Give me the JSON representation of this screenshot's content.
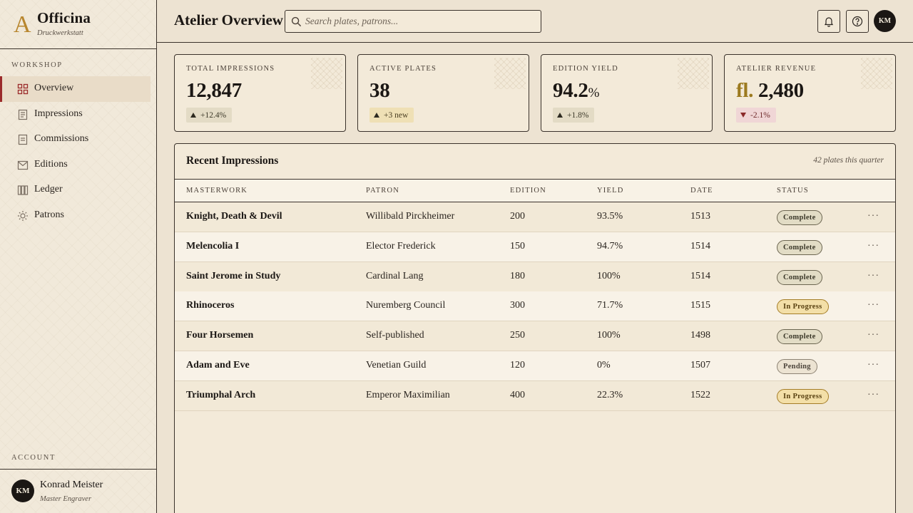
{
  "brand": {
    "name": "Officina",
    "subtitle": "Druckwerkstatt",
    "mark": "A"
  },
  "sidebar": {
    "section_label": "WORKSHOP",
    "items": [
      {
        "label": "Overview",
        "icon": "grid-icon",
        "active": true
      },
      {
        "label": "Impressions",
        "icon": "document-icon",
        "active": false
      },
      {
        "label": "Commissions",
        "icon": "file-icon",
        "active": false
      },
      {
        "label": "Editions",
        "icon": "mail-icon",
        "active": false
      },
      {
        "label": "Ledger",
        "icon": "columns-icon",
        "active": false
      },
      {
        "label": "Patrons",
        "icon": "sun-icon",
        "active": false
      }
    ],
    "account_label": "ACCOUNT",
    "user": {
      "initials": "KM",
      "name": "Konrad Meister",
      "role": "Master Engraver"
    }
  },
  "header": {
    "title": "Atelier Overview",
    "search_placeholder": "Search plates, patrons...",
    "avatar_initials": "KM"
  },
  "stats": [
    {
      "label": "TOTAL IMPRESSIONS",
      "value": "12,847",
      "prefix": "",
      "unit": "",
      "delta": "+12.4%",
      "trend": "up"
    },
    {
      "label": "ACTIVE PLATES",
      "value": "38",
      "prefix": "",
      "unit": "",
      "delta": "+3 new",
      "trend": "new"
    },
    {
      "label": "EDITION YIELD",
      "value": "94.2",
      "prefix": "",
      "unit": "%",
      "delta": "+1.8%",
      "trend": "up"
    },
    {
      "label": "ATELIER REVENUE",
      "value": "2,480",
      "prefix": "fl.",
      "unit": "",
      "delta": "-2.1%",
      "trend": "down"
    }
  ],
  "table": {
    "title": "Recent Impressions",
    "meta": "42 plates this quarter",
    "columns": [
      "MASTERWORK",
      "PATRON",
      "EDITION",
      "YIELD",
      "DATE",
      "STATUS"
    ],
    "rows": [
      {
        "masterwork": "Knight, Death & Devil",
        "patron": "Willibald Pirckheimer",
        "edition": "200",
        "yield": "93.5%",
        "date": "1513",
        "status": "Complete"
      },
      {
        "masterwork": "Melencolia I",
        "patron": "Elector Frederick",
        "edition": "150",
        "yield": "94.7%",
        "date": "1514",
        "status": "Complete"
      },
      {
        "masterwork": "Saint Jerome in Study",
        "patron": "Cardinal Lang",
        "edition": "180",
        "yield": "100%",
        "date": "1514",
        "status": "Complete"
      },
      {
        "masterwork": "Rhinoceros",
        "patron": "Nuremberg Council",
        "edition": "300",
        "yield": "71.7%",
        "date": "1515",
        "status": "In Progress"
      },
      {
        "masterwork": "Four Horsemen",
        "patron": "Self-published",
        "edition": "250",
        "yield": "100%",
        "date": "1498",
        "status": "Complete"
      },
      {
        "masterwork": "Adam and Eve",
        "patron": "Venetian Guild",
        "edition": "120",
        "yield": "0%",
        "date": "1507",
        "status": "Pending"
      },
      {
        "masterwork": "Triumphal Arch",
        "patron": "Emperor Maximilian",
        "edition": "400",
        "yield": "22.3%",
        "date": "1522",
        "status": "In Progress"
      }
    ],
    "row_action": "···"
  },
  "colors": {
    "accent": "#9b2b2b",
    "gold": "#b8862e",
    "ink": "#1b1714",
    "paper": "#f3ead9"
  }
}
